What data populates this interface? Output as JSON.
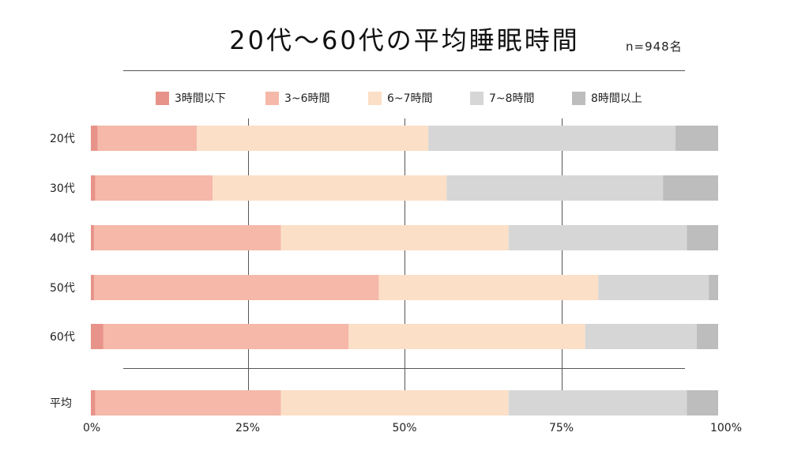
{
  "header": {
    "title": "20代～60代の平均睡眠時間",
    "sample": "n=948名"
  },
  "chart_data": {
    "type": "bar",
    "orientation": "horizontal",
    "stacked": true,
    "categories": [
      "20代",
      "30代",
      "40代",
      "50代",
      "60代",
      "平均"
    ],
    "series": [
      {
        "name": "3時間以下",
        "color": "#e8938a",
        "values": [
          1.1,
          0.7,
          0.5,
          0.5,
          2.0,
          0.7
        ]
      },
      {
        "name": "3~6時間",
        "color": "#f5b8a9",
        "values": [
          15.8,
          18.7,
          29.8,
          45.4,
          39.1,
          29.6
        ]
      },
      {
        "name": "6~7時間",
        "color": "#fcdfc7",
        "values": [
          36.9,
          37.3,
          36.3,
          35.0,
          37.7,
          36.3
        ]
      },
      {
        "name": "7~8時間",
        "color": "#d6d6d6",
        "values": [
          39.4,
          34.5,
          28.4,
          17.6,
          17.8,
          28.4
        ]
      },
      {
        "name": "8時間以上",
        "color": "#bdbdbd",
        "values": [
          6.8,
          8.8,
          5.0,
          1.5,
          3.4,
          5.0
        ]
      }
    ],
    "xticks": [
      "0%",
      "25%",
      "50%",
      "75%",
      "100%"
    ],
    "xlim": [
      0,
      100
    ],
    "grid": true,
    "legend": "top"
  }
}
